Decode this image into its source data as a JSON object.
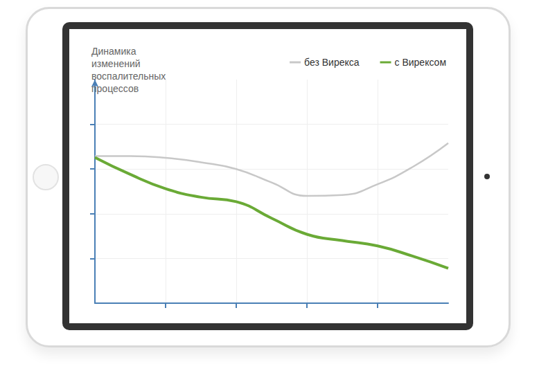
{
  "chart_data": {
    "type": "line",
    "title": "Динамика изменений воспалительных процессов",
    "x": [
      0,
      0.5,
      1,
      1.5,
      2,
      2.5,
      3,
      3.5,
      4,
      4.5,
      5
    ],
    "series": [
      {
        "name": "без Вирекса",
        "color": "#c8c8c8",
        "line_style": "solid",
        "marker": "none",
        "values": [
          3.29,
          3.29,
          3.25,
          3.15,
          3.0,
          2.7,
          2.4,
          2.42,
          2.66,
          3.05,
          3.58
        ]
      },
      {
        "name": "с Вирексом",
        "color": "#6aaa36",
        "line_style": "solid",
        "marker": "none",
        "values": [
          3.26,
          2.88,
          2.56,
          2.37,
          2.27,
          1.9,
          1.54,
          1.4,
          1.28,
          1.05,
          0.78
        ]
      }
    ],
    "xlim": [
      0,
      5
    ],
    "xticks": [
      1,
      2,
      3,
      4
    ],
    "ylim": [
      0,
      5
    ],
    "yticks": [
      1,
      2,
      3,
      4
    ],
    "grid": true,
    "legend": "top-right",
    "tick_labels": false
  }
}
